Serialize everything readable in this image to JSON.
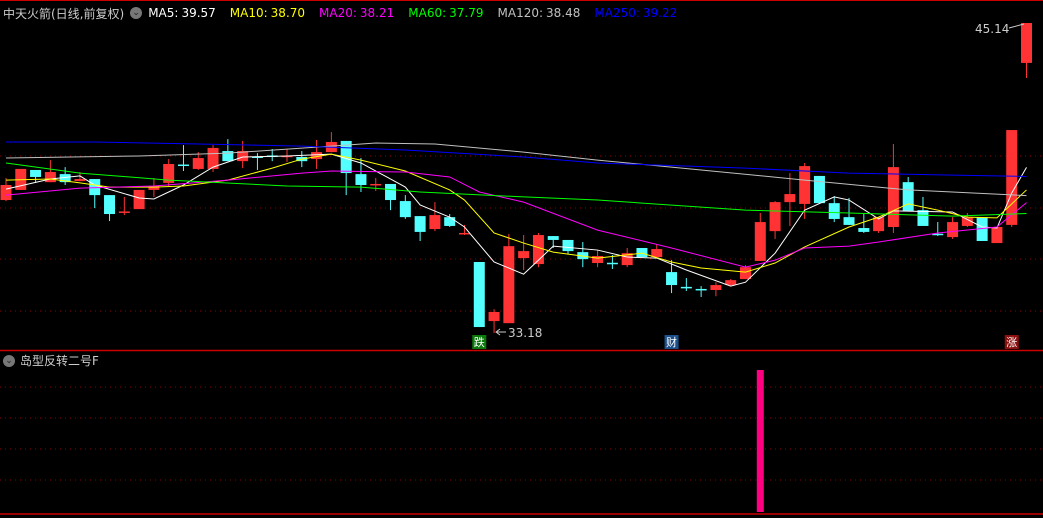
{
  "header": {
    "title": "中天火箭(日线,前复权)",
    "ma": [
      {
        "label": "MA5:",
        "value": "39.57",
        "color": "#ffffff"
      },
      {
        "label": "MA10:",
        "value": "38.70",
        "color": "#ffff00"
      },
      {
        "label": "MA20:",
        "value": "38.21",
        "color": "#ff00ff"
      },
      {
        "label": "MA60:",
        "value": "37.79",
        "color": "#00ff00"
      },
      {
        "label": "MA120:",
        "value": "38.48",
        "color": "#c0c0c0"
      },
      {
        "label": "MA250:",
        "value": "39.22",
        "color": "#0000ff"
      }
    ]
  },
  "indicator": {
    "title": "岛型反转二号F",
    "color": "#ff0080"
  },
  "colors": {
    "up": "#ff3333",
    "down": "#54ffff",
    "grid": "#8b0000",
    "divider": "#cc0000"
  },
  "chart_data": {
    "type": "candlestick",
    "ylim": [
      33.0,
      45.3
    ],
    "grid": true,
    "max_label": "45.14",
    "min_label": "33.18",
    "markers": [
      {
        "index": 33,
        "text": "跌",
        "bg": "#0a7a0a"
      },
      {
        "index": 46,
        "text": "财",
        "bg": "#1d4f8a"
      },
      {
        "index": 69,
        "text": "涨",
        "bg": "#8b1010"
      }
    ],
    "candles": [
      [
        38.31,
        38.89,
        39.16,
        38.27
      ],
      [
        38.7,
        39.51,
        39.51,
        38.7
      ],
      [
        39.47,
        39.2,
        39.47,
        38.97
      ],
      [
        39.0,
        39.39,
        39.85,
        39.0
      ],
      [
        39.31,
        39.0,
        39.58,
        38.89
      ],
      [
        39.04,
        39.12,
        39.39,
        39.04
      ],
      [
        39.12,
        38.5,
        39.12,
        38.0
      ],
      [
        38.5,
        37.77,
        38.5,
        37.5
      ],
      [
        37.85,
        37.87,
        38.43,
        37.73
      ],
      [
        37.96,
        38.7,
        38.7,
        37.96
      ],
      [
        38.7,
        38.85,
        39.16,
        38.43
      ],
      [
        38.97,
        39.7,
        39.89,
        38.85
      ],
      [
        39.68,
        39.66,
        40.43,
        39.43
      ],
      [
        39.51,
        39.93,
        40.16,
        39.47
      ],
      [
        39.51,
        40.32,
        40.43,
        39.39
      ],
      [
        40.2,
        39.81,
        40.66,
        39.81
      ],
      [
        39.81,
        40.2,
        40.59,
        39.54
      ],
      [
        39.99,
        39.97,
        40.12,
        39.47
      ],
      [
        40.03,
        40.01,
        40.28,
        39.81
      ],
      [
        40.0,
        40.02,
        40.28,
        39.78
      ],
      [
        39.97,
        39.81,
        40.2,
        39.58
      ],
      [
        39.89,
        40.16,
        40.63,
        39.51
      ],
      [
        40.16,
        40.55,
        40.93,
        40.16
      ],
      [
        40.59,
        39.35,
        40.59,
        38.5
      ],
      [
        39.31,
        38.89,
        39.93,
        38.62
      ],
      [
        38.92,
        38.93,
        39.16,
        38.66
      ],
      [
        38.93,
        38.31,
        38.93,
        37.92
      ],
      [
        38.27,
        37.65,
        38.5,
        37.58
      ],
      [
        37.69,
        37.08,
        37.69,
        36.73
      ],
      [
        37.19,
        37.73,
        38.23,
        37.11
      ],
      [
        37.65,
        37.31,
        37.77,
        37.27
      ],
      [
        37.03,
        37.04,
        37.35,
        36.96
      ],
      [
        35.92,
        33.41,
        35.92,
        33.41
      ],
      [
        33.64,
        33.99,
        34.1,
        33.18
      ],
      [
        33.56,
        36.53,
        37.0,
        33.56
      ],
      [
        36.07,
        36.34,
        36.96,
        35.61
      ],
      [
        35.84,
        36.96,
        37.04,
        35.72
      ],
      [
        36.92,
        36.77,
        36.92,
        36.46
      ],
      [
        36.77,
        36.34,
        36.77,
        36.23
      ],
      [
        36.3,
        36.03,
        36.69,
        35.72
      ],
      [
        35.88,
        36.15,
        36.38,
        35.72
      ],
      [
        35.89,
        35.88,
        36.19,
        35.65
      ],
      [
        35.8,
        36.26,
        36.46,
        35.72
      ],
      [
        36.46,
        36.11,
        36.46,
        36.11
      ],
      [
        36.11,
        36.42,
        36.61,
        36.07
      ],
      [
        35.53,
        35.03,
        35.99,
        34.72
      ],
      [
        34.96,
        34.95,
        35.3,
        34.8
      ],
      [
        34.88,
        34.87,
        34.99,
        34.57
      ],
      [
        34.84,
        35.03,
        35.14,
        34.6
      ],
      [
        35.03,
        35.22,
        35.26,
        34.99
      ],
      [
        35.26,
        35.72,
        35.8,
        35.26
      ],
      [
        35.96,
        37.46,
        37.81,
        35.96
      ],
      [
        37.11,
        38.23,
        38.27,
        36.81
      ],
      [
        38.23,
        38.54,
        39.35,
        37.31
      ],
      [
        38.16,
        39.62,
        39.74,
        37.58
      ],
      [
        39.24,
        38.19,
        39.24,
        38.19
      ],
      [
        38.19,
        37.58,
        38.46,
        37.46
      ],
      [
        37.65,
        37.35,
        38.39,
        37.35
      ],
      [
        37.23,
        37.08,
        37.77,
        37.04
      ],
      [
        37.11,
        37.65,
        37.65,
        37.04
      ],
      [
        37.27,
        39.58,
        40.47,
        37.04
      ],
      [
        39.0,
        37.89,
        39.2,
        37.89
      ],
      [
        37.92,
        37.31,
        38.43,
        37.31
      ],
      [
        37.01,
        37.0,
        37.46,
        36.92
      ],
      [
        36.88,
        37.46,
        37.65,
        36.81
      ],
      [
        37.31,
        37.65,
        37.81,
        37.27
      ],
      [
        37.65,
        36.73,
        37.65,
        36.73
      ],
      [
        36.65,
        37.27,
        37.27,
        36.65
      ],
      [
        37.35,
        41.01,
        41.01,
        37.27
      ],
      [
        43.6,
        45.14,
        45.14,
        43.02
      ]
    ],
    "ma_lines": [
      {
        "name": "MA5",
        "color": "#ffffff",
        "points": [
          [
            1,
            38.73
          ],
          [
            4,
            39.12
          ],
          [
            6,
            39.24
          ],
          [
            7,
            38.89
          ],
          [
            10,
            38.39
          ],
          [
            11,
            38.35
          ],
          [
            13,
            38.89
          ],
          [
            15,
            39.58
          ],
          [
            17,
            39.97
          ],
          [
            20,
            40.01
          ],
          [
            23,
            40.08
          ],
          [
            25,
            39.74
          ],
          [
            28,
            38.81
          ],
          [
            29,
            38.12
          ],
          [
            31,
            37.65
          ],
          [
            32,
            37.27
          ],
          [
            34,
            35.92
          ],
          [
            36,
            35.45
          ],
          [
            38,
            36.53
          ],
          [
            41,
            36.38
          ],
          [
            43,
            36.11
          ],
          [
            45,
            36.07
          ],
          [
            47,
            35.61
          ],
          [
            50,
            34.99
          ],
          [
            51,
            35.14
          ],
          [
            53,
            36.26
          ],
          [
            55,
            37.92
          ],
          [
            57,
            38.43
          ],
          [
            58,
            38.31
          ],
          [
            60,
            37.58
          ],
          [
            61,
            37.89
          ],
          [
            65,
            37.85
          ],
          [
            67,
            37.27
          ],
          [
            68,
            37.23
          ],
          [
            69,
            38.58
          ],
          [
            70,
            39.57
          ]
        ]
      },
      {
        "name": "MA10",
        "color": "#ffff00",
        "points": [
          [
            1,
            39.08
          ],
          [
            4,
            39.12
          ],
          [
            6,
            38.97
          ],
          [
            8,
            38.81
          ],
          [
            11,
            38.81
          ],
          [
            13,
            38.85
          ],
          [
            16,
            39.08
          ],
          [
            19,
            39.54
          ],
          [
            21,
            39.89
          ],
          [
            23,
            40.08
          ],
          [
            25,
            39.85
          ],
          [
            28,
            39.43
          ],
          [
            31,
            38.7
          ],
          [
            32,
            38.31
          ],
          [
            34,
            37.04
          ],
          [
            36,
            36.65
          ],
          [
            38,
            36.3
          ],
          [
            41,
            36.07
          ],
          [
            44,
            36.26
          ],
          [
            46,
            35.92
          ],
          [
            48,
            35.69
          ],
          [
            51,
            35.53
          ],
          [
            53,
            35.88
          ],
          [
            55,
            36.5
          ],
          [
            58,
            37.27
          ],
          [
            60,
            37.65
          ],
          [
            62,
            38.16
          ],
          [
            64,
            37.92
          ],
          [
            66,
            37.65
          ],
          [
            68,
            37.62
          ],
          [
            70,
            38.7
          ]
        ]
      },
      {
        "name": "MA20",
        "color": "#ff00ff",
        "points": [
          [
            1,
            38.5
          ],
          [
            6,
            38.77
          ],
          [
            11,
            38.85
          ],
          [
            16,
            39.08
          ],
          [
            21,
            39.35
          ],
          [
            23,
            39.43
          ],
          [
            28,
            39.39
          ],
          [
            31,
            39.2
          ],
          [
            33,
            38.62
          ],
          [
            36,
            38.23
          ],
          [
            41,
            37.15
          ],
          [
            46,
            36.46
          ],
          [
            51,
            35.72
          ],
          [
            53,
            35.99
          ],
          [
            55,
            36.46
          ],
          [
            58,
            36.53
          ],
          [
            60,
            36.69
          ],
          [
            64,
            37.04
          ],
          [
            68,
            37.27
          ],
          [
            70,
            38.21
          ]
        ]
      },
      {
        "name": "MA60",
        "color": "#00ff00",
        "points": [
          [
            1,
            39.74
          ],
          [
            6,
            39.35
          ],
          [
            12,
            39.08
          ],
          [
            20,
            38.85
          ],
          [
            25,
            38.81
          ],
          [
            29,
            38.62
          ],
          [
            36,
            38.43
          ],
          [
            41,
            38.31
          ],
          [
            51,
            37.92
          ],
          [
            58,
            37.81
          ],
          [
            65,
            37.69
          ],
          [
            70,
            37.79
          ]
        ]
      },
      {
        "name": "MA120",
        "color": "#c0c0c0",
        "points": [
          [
            1,
            39.93
          ],
          [
            10,
            40.01
          ],
          [
            16,
            40.12
          ],
          [
            23,
            40.39
          ],
          [
            26,
            40.51
          ],
          [
            30,
            40.47
          ],
          [
            36,
            40.16
          ],
          [
            41,
            39.85
          ],
          [
            48,
            39.47
          ],
          [
            55,
            39.08
          ],
          [
            62,
            38.7
          ],
          [
            70,
            38.48
          ]
        ]
      },
      {
        "name": "MA250",
        "color": "#0000ff",
        "points": [
          [
            1,
            40.55
          ],
          [
            7,
            40.55
          ],
          [
            14,
            40.47
          ],
          [
            21,
            40.39
          ],
          [
            28,
            40.24
          ],
          [
            36,
            39.97
          ],
          [
            41,
            39.74
          ],
          [
            51,
            39.54
          ],
          [
            58,
            39.35
          ],
          [
            65,
            39.27
          ],
          [
            70,
            39.22
          ]
        ]
      }
    ],
    "indicator_signals": [
      {
        "index": 52,
        "value": 1
      }
    ]
  }
}
